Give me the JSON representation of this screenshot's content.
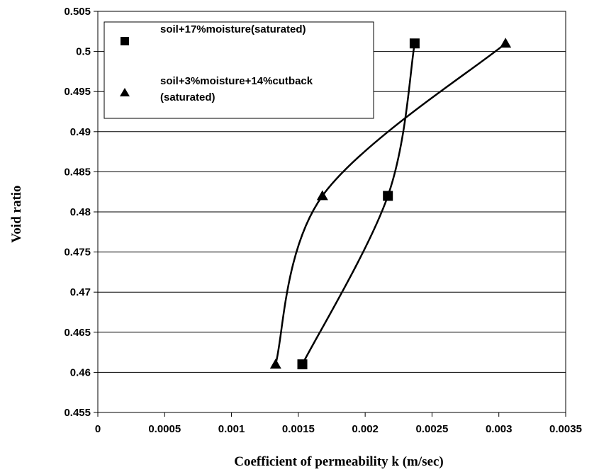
{
  "chart_data": {
    "type": "scatter",
    "xlabel": "Coefficient of permeability k   (m/sec)",
    "ylabel": "Void ratio",
    "xlim": [
      0,
      0.0035
    ],
    "ylim": [
      0.455,
      0.505
    ],
    "x_ticks": [
      "0",
      "0.0005",
      "0.001",
      "0.0015",
      "0.002",
      "0.0025",
      "0.003",
      "0.0035"
    ],
    "y_ticks": [
      "0.455",
      "0.46",
      "0.465",
      "0.47",
      "0.475",
      "0.48",
      "0.485",
      "0.49",
      "0.495",
      "0.5",
      "0.505"
    ],
    "grid": "horizontal",
    "legend_position": "top-left",
    "series": [
      {
        "name": "soil+17%moisture(saturated)",
        "marker": "square",
        "color": "#000000",
        "points": [
          {
            "x": 0.00153,
            "y": 0.461
          },
          {
            "x": 0.00217,
            "y": 0.482
          },
          {
            "x": 0.00237,
            "y": 0.501
          }
        ]
      },
      {
        "name": "soil+3%moisture+14%cutback (saturated)",
        "name_lines": [
          "soil+3%moisture+14%cutback",
          "(saturated)"
        ],
        "marker": "triangle",
        "color": "#000000",
        "points": [
          {
            "x": 0.00133,
            "y": 0.461
          },
          {
            "x": 0.00168,
            "y": 0.482
          },
          {
            "x": 0.00305,
            "y": 0.501
          }
        ]
      }
    ]
  }
}
